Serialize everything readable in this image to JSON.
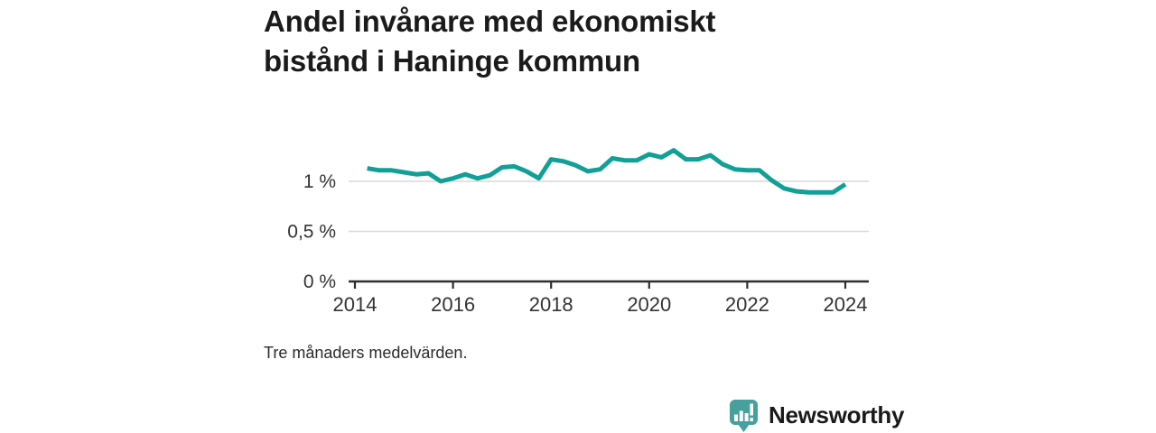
{
  "title": {
    "line1": "Andel invånare med ekonomiskt",
    "line2": "bistånd i Haninge kommun"
  },
  "footnote": "Tre månaders medelvärden.",
  "branding": {
    "name": "Newsworthy",
    "icon": "newsworthy-speech-bubble-barchart-icon",
    "color": "#47a09e"
  },
  "colors": {
    "line": "#12a096",
    "grid": "#d9d9d9",
    "axis": "#2e2e2e",
    "tick_text": "#333333",
    "title_text": "#1b1b1b"
  },
  "chart_data": {
    "type": "line",
    "title": "Andel invånare med ekonomiskt bistånd i Haninge kommun",
    "subtitle": "Tre månaders medelvärden.",
    "unit": "%",
    "grid": "horizontal gridlines at 0.5 % and 1 % only",
    "legend_position": "none",
    "xlim": [
      2013.87,
      2024.48
    ],
    "ylim": [
      0,
      1.45
    ],
    "x_ticks": [
      2014,
      2016,
      2018,
      2020,
      2022,
      2024
    ],
    "y_ticks": [
      {
        "value": 0,
        "label": "0 %"
      },
      {
        "value": 0.5,
        "label": "0,5 %"
      },
      {
        "value": 1,
        "label": "1 %"
      }
    ],
    "series": [
      {
        "name": "Andel invånare med ekonomiskt bistånd i Haninge kommun",
        "x": [
          2014.25,
          2014.5,
          2014.75,
          2015.0,
          2015.25,
          2015.5,
          2015.75,
          2016.0,
          2016.25,
          2016.5,
          2016.75,
          2017.0,
          2017.25,
          2017.5,
          2017.75,
          2018.0,
          2018.25,
          2018.5,
          2018.75,
          2019.0,
          2019.25,
          2019.5,
          2019.75,
          2020.0,
          2020.25,
          2020.5,
          2020.75,
          2021.0,
          2021.25,
          2021.5,
          2021.75,
          2022.0,
          2022.25,
          2022.5,
          2022.75,
          2023.0,
          2023.25,
          2023.5,
          2023.75,
          2024.0
        ],
        "values": [
          1.13,
          1.11,
          1.11,
          1.09,
          1.07,
          1.08,
          1.0,
          1.03,
          1.07,
          1.03,
          1.06,
          1.14,
          1.15,
          1.1,
          1.03,
          1.22,
          1.2,
          1.16,
          1.1,
          1.12,
          1.23,
          1.21,
          1.21,
          1.27,
          1.24,
          1.31,
          1.22,
          1.22,
          1.26,
          1.17,
          1.12,
          1.11,
          1.11,
          1.01,
          0.93,
          0.9,
          0.89,
          0.89,
          0.89,
          0.97
        ]
      }
    ]
  }
}
